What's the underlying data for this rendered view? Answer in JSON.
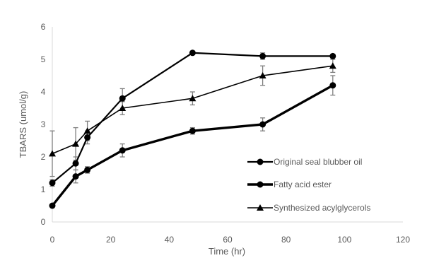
{
  "chart_data": {
    "type": "line",
    "title": "",
    "xlabel": "Time (hr)",
    "ylabel": "TBARS (umol/g)",
    "xlim": [
      0,
      120
    ],
    "ylim": [
      0,
      6
    ],
    "xticks": [
      "0",
      "20",
      "40",
      "60",
      "80",
      "100",
      "120"
    ],
    "yticks": [
      "0",
      "1",
      "2",
      "3",
      "4",
      "5",
      "6"
    ],
    "grid": false,
    "legend": "right",
    "series": [
      {
        "name": "Original seal blubber oil",
        "marker": "circle",
        "color": "#000000",
        "x": [
          0,
          8,
          12,
          24,
          48,
          72,
          96
        ],
        "y": [
          1.2,
          1.8,
          2.6,
          3.8,
          5.2,
          5.1,
          5.1
        ],
        "err": [
          0.1,
          0.2,
          0.2,
          0.3,
          0.05,
          0.1,
          0.05
        ]
      },
      {
        "name": "Fatty acid ester",
        "marker": "circle",
        "color": "#000000",
        "x": [
          0,
          8,
          12,
          24,
          48,
          72,
          96
        ],
        "y": [
          0.5,
          1.4,
          1.6,
          2.2,
          2.8,
          3.0,
          4.2
        ],
        "err": [
          0.05,
          0.2,
          0.1,
          0.2,
          0.1,
          0.2,
          0.3
        ]
      },
      {
        "name": "Synthesized acylglycerols",
        "marker": "triangle",
        "color": "#000000",
        "x": [
          0,
          8,
          12,
          24,
          48,
          72,
          96
        ],
        "y": [
          2.1,
          2.4,
          2.8,
          3.5,
          3.8,
          4.5,
          4.8
        ],
        "err": [
          0.7,
          0.5,
          0.3,
          0.2,
          0.2,
          0.3,
          0.2
        ]
      }
    ]
  }
}
